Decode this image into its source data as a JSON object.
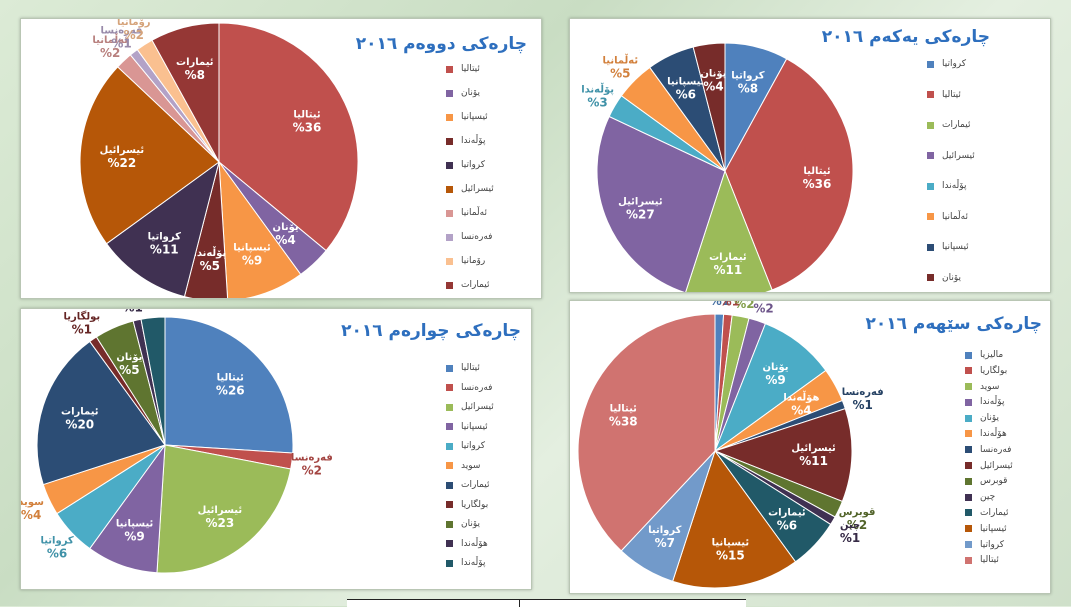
{
  "chart_data": [
    {
      "id": "c1",
      "type": "pie",
      "title": "چارەکی یەکەم ٢٠١٦",
      "slices": [
        {
          "label": "كرواتيا",
          "value": 8,
          "pct": "%8",
          "color": "#4f81bd"
        },
        {
          "label": "ئیتالیا",
          "value": 36,
          "pct": "%36",
          "color": "#c0504d"
        },
        {
          "label": "ئیمارات",
          "value": 11,
          "pct": "%11",
          "color": "#9bbb59"
        },
        {
          "label": "ئیسرائیل",
          "value": 27,
          "pct": "%27",
          "color": "#8064a2"
        },
        {
          "label": "پۆڵەندا",
          "value": 3,
          "pct": "%3",
          "color": "#4bacc6"
        },
        {
          "label": "ئەڵمانیا",
          "value": 5,
          "pct": "%5",
          "color": "#f79646"
        },
        {
          "label": "ئیسپانیا",
          "value": 6,
          "pct": "%6",
          "color": "#2c4d75"
        },
        {
          "label": "یۆنان",
          "value": 4,
          "pct": "%4",
          "color": "#772c2a"
        }
      ]
    },
    {
      "id": "c2",
      "type": "pie",
      "title": "چارەکی دووەم ٢٠١٦",
      "slices": [
        {
          "label": "ئیتالیا",
          "value": 36,
          "pct": "%36",
          "color": "#c0504d"
        },
        {
          "label": "یۆنان",
          "value": 4,
          "pct": "%4",
          "color": "#8064a2"
        },
        {
          "label": "ئیسپانیا",
          "value": 9,
          "pct": "%9",
          "color": "#f79646"
        },
        {
          "label": "پۆڵەندا",
          "value": 5,
          "pct": "%5",
          "color": "#772c2a"
        },
        {
          "label": "كرواتيا",
          "value": 11,
          "pct": "%11",
          "color": "#403152"
        },
        {
          "label": "ئیسرائیل",
          "value": 22,
          "pct": "%22",
          "color": "#b65708"
        },
        {
          "label": "ئەڵمانیا",
          "value": 2,
          "pct": "%2",
          "color": "#d99694"
        },
        {
          "label": "فەرەنسا",
          "value": 1,
          "pct": "%1",
          "color": "#b3a2c7"
        },
        {
          "label": "رۆمانیا",
          "value": 2,
          "pct": "%2",
          "color": "#fac090"
        },
        {
          "label": "ئیمارات",
          "value": 8,
          "pct": "%8",
          "color": "#953735"
        }
      ]
    },
    {
      "id": "c3",
      "type": "pie",
      "title": "چارەکی چوارەم ٢٠١٦",
      "slices": [
        {
          "label": "ئیتالیا",
          "value": 26,
          "pct": "%26",
          "color": "#4f81bd"
        },
        {
          "label": "فەرەنسا",
          "value": 2,
          "pct": "%2",
          "color": "#c0504d"
        },
        {
          "label": "ئیسرائیل",
          "value": 23,
          "pct": "%23",
          "color": "#9bbb59"
        },
        {
          "label": "ئیسپانیا",
          "value": 9,
          "pct": "%9",
          "color": "#8064a2"
        },
        {
          "label": "كرواتيا",
          "value": 6,
          "pct": "%6",
          "color": "#4bacc6"
        },
        {
          "label": "سوید",
          "value": 4,
          "pct": "%4",
          "color": "#f79646"
        },
        {
          "label": "ئیمارات",
          "value": 20,
          "pct": "%20",
          "color": "#2c4d75"
        },
        {
          "label": "بولگاریا",
          "value": 1,
          "pct": "%1",
          "color": "#772c2a"
        },
        {
          "label": "یۆنان",
          "value": 5,
          "pct": "%5",
          "color": "#5f7530"
        },
        {
          "label": "هۆڵەندا",
          "value": 1,
          "pct": "%1",
          "color": "#403152"
        },
        {
          "label": "پۆڵەندا",
          "value": 3,
          "pct": "%3",
          "color": "#215968"
        }
      ]
    },
    {
      "id": "c4",
      "type": "pie",
      "title": "چارەکی سێهەم ٢٠١٦",
      "slices": [
        {
          "label": "مالیزیا",
          "value": 1,
          "pct": "%1",
          "color": "#4f81bd"
        },
        {
          "label": "بولگاریا",
          "value": 1,
          "pct": "%1",
          "color": "#c0504d"
        },
        {
          "label": "سوید",
          "value": 2,
          "pct": "%2",
          "color": "#9bbb59"
        },
        {
          "label": "پۆڵەندا",
          "value": 2,
          "pct": "%2",
          "color": "#8064a2"
        },
        {
          "label": "یۆنان",
          "value": 9,
          "pct": "%9",
          "color": "#4bacc6"
        },
        {
          "label": "هۆڵەندا",
          "value": 4,
          "pct": "%4",
          "color": "#f79646"
        },
        {
          "label": "فەرەنسا",
          "value": 1,
          "pct": "%1",
          "color": "#2c4d75"
        },
        {
          "label": "ئیسرائیل",
          "value": 11,
          "pct": "%11",
          "color": "#772c2a"
        },
        {
          "label": "قوبرس",
          "value": 2,
          "pct": "%2",
          "color": "#5f7530"
        },
        {
          "label": "چین",
          "value": 1,
          "pct": "%1",
          "color": "#403152"
        },
        {
          "label": "ئیمارات",
          "value": 6,
          "pct": "%6",
          "color": "#215968"
        },
        {
          "label": "ئیسپانیا",
          "value": 15,
          "pct": "%15",
          "color": "#b65708"
        },
        {
          "label": "كرواتيا",
          "value": 7,
          "pct": "%7",
          "color": "#729aca"
        },
        {
          "label": "ئیتالیا",
          "value": 38,
          "pct": "%38",
          "color": "#d07370"
        }
      ]
    }
  ]
}
